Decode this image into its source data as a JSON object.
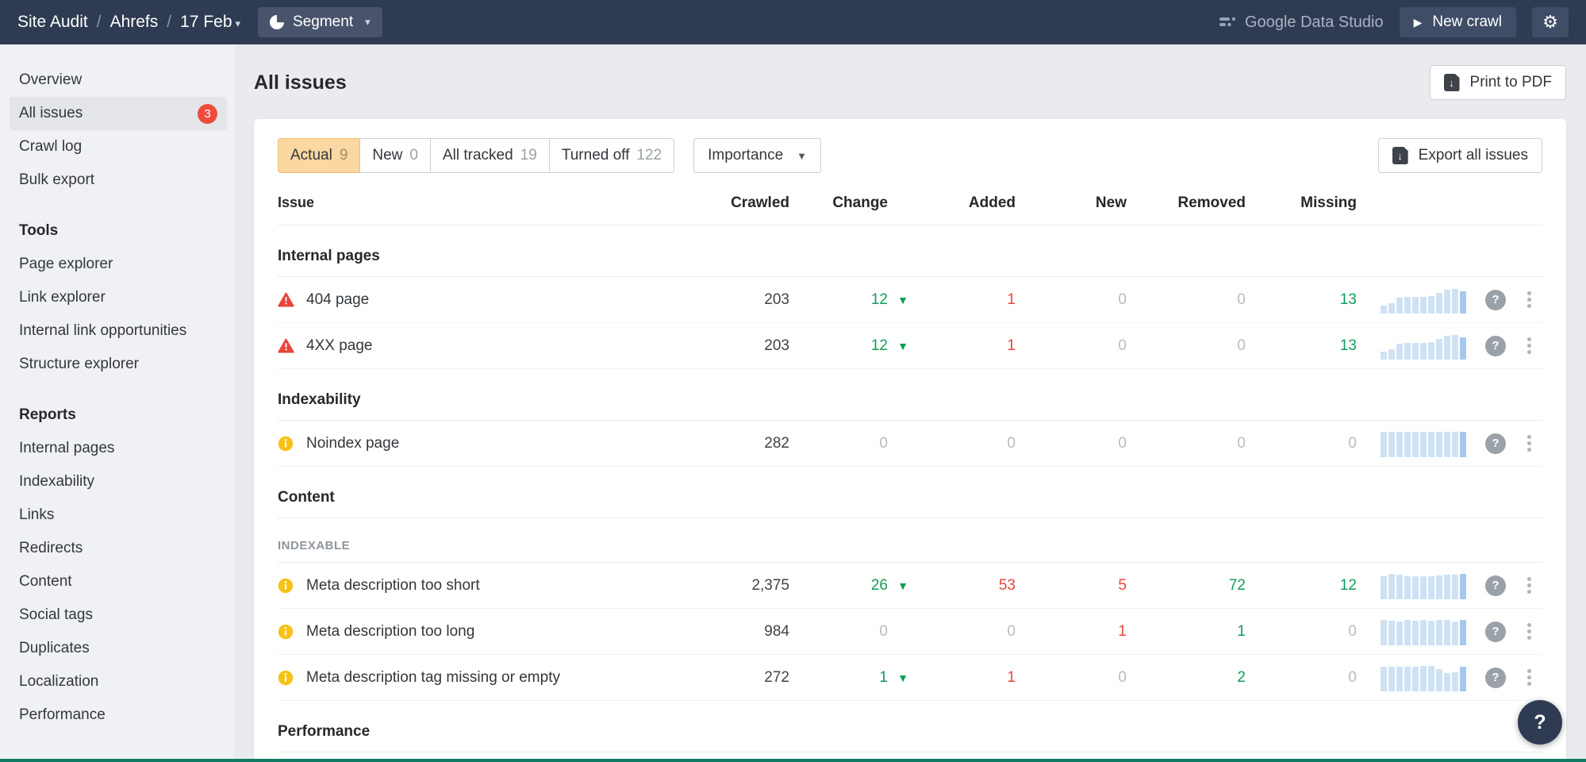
{
  "colors": {
    "topbar_navy": "#2e3b52",
    "red": "#e8453c",
    "green": "#0f9d58",
    "gray_num": "#b7bcc1",
    "dark_num": "#3f4347",
    "spark_bar": "#cfe2f4",
    "spark_bar_last": "#a6c8ec",
    "badge_red": "#ee4c3f",
    "info_yellow": "#f7c116",
    "tab_active_bg": "#fbd7a1"
  },
  "topbar": {
    "breadcrumb": [
      "Site Audit",
      "Ahrefs",
      "17 Feb"
    ],
    "segment_label": "Segment",
    "gds_label": "Google Data Studio",
    "new_crawl_label": "New crawl"
  },
  "sidebar": {
    "groups": [
      {
        "header": null,
        "items": [
          {
            "label": "Overview"
          },
          {
            "label": "All issues",
            "badge": "3",
            "active": true
          },
          {
            "label": "Crawl log"
          },
          {
            "label": "Bulk export"
          }
        ]
      },
      {
        "header": "Tools",
        "items": [
          {
            "label": "Page explorer"
          },
          {
            "label": "Link explorer"
          },
          {
            "label": "Internal link opportunities"
          },
          {
            "label": "Structure explorer"
          }
        ]
      },
      {
        "header": "Reports",
        "items": [
          {
            "label": "Internal pages"
          },
          {
            "label": "Indexability"
          },
          {
            "label": "Links"
          },
          {
            "label": "Redirects"
          },
          {
            "label": "Content"
          },
          {
            "label": "Social tags"
          },
          {
            "label": "Duplicates"
          },
          {
            "label": "Localization"
          },
          {
            "label": "Performance"
          }
        ]
      }
    ]
  },
  "main": {
    "title": "All issues",
    "print_button": "Print to PDF",
    "export_button": "Export all issues",
    "importance_label": "Importance",
    "tabs": [
      {
        "label": "Actual",
        "count": "9",
        "active": true
      },
      {
        "label": "New",
        "count": "0"
      },
      {
        "label": "All tracked",
        "count": "19"
      },
      {
        "label": "Turned off",
        "count": "122"
      }
    ]
  },
  "table": {
    "columns": [
      "Issue",
      "Crawled",
      "Change",
      "Added",
      "New",
      "Removed",
      "Missing"
    ],
    "blocks": [
      {
        "type": "group",
        "label": "Internal pages"
      },
      {
        "type": "row",
        "icon": "alert-triangle-icon",
        "name": "404 page",
        "crawled": "203",
        "change": {
          "v": "12",
          "c": "green",
          "trend": "down"
        },
        "added": {
          "v": "1",
          "c": "red"
        },
        "new": {
          "v": "0",
          "c": "gray"
        },
        "removed": {
          "v": "0",
          "c": "gray"
        },
        "missing": {
          "v": "13",
          "c": "green"
        },
        "spark": {
          "bars": [
            30,
            38,
            60,
            64,
            64,
            64,
            68,
            80,
            92,
            95,
            85
          ],
          "last_dark": true
        }
      },
      {
        "type": "row",
        "icon": "alert-triangle-icon",
        "name": "4XX page",
        "crawled": "203",
        "change": {
          "v": "12",
          "c": "green",
          "trend": "down"
        },
        "added": {
          "v": "1",
          "c": "red"
        },
        "new": {
          "v": "0",
          "c": "gray"
        },
        "removed": {
          "v": "0",
          "c": "gray"
        },
        "missing": {
          "v": "13",
          "c": "green"
        },
        "spark": {
          "bars": [
            30,
            38,
            60,
            64,
            64,
            64,
            68,
            80,
            92,
            95,
            85
          ],
          "last_dark": true
        }
      },
      {
        "type": "group",
        "label": "Indexability"
      },
      {
        "type": "row",
        "icon": "info-circle-icon",
        "name": "Noindex page",
        "crawled": "282",
        "change": {
          "v": "0",
          "c": "gray"
        },
        "added": {
          "v": "0",
          "c": "gray"
        },
        "new": {
          "v": "0",
          "c": "gray"
        },
        "removed": {
          "v": "0",
          "c": "gray"
        },
        "missing": {
          "v": "0",
          "c": "gray"
        },
        "spark": {
          "bars": [
            100,
            100,
            100,
            100,
            100,
            100,
            100,
            100,
            100,
            100,
            100
          ],
          "last_dark": true
        }
      },
      {
        "type": "group",
        "label": "Content"
      },
      {
        "type": "subgroup",
        "label": "INDEXABLE"
      },
      {
        "type": "row",
        "icon": "info-circle-icon",
        "name": "Meta description too short",
        "crawled": "2,375",
        "change": {
          "v": "26",
          "c": "green",
          "trend": "down"
        },
        "added": {
          "v": "53",
          "c": "red"
        },
        "new": {
          "v": "5",
          "c": "red"
        },
        "removed": {
          "v": "72",
          "c": "green"
        },
        "missing": {
          "v": "12",
          "c": "green"
        },
        "spark": {
          "bars": [
            90,
            100,
            96,
            90,
            88,
            88,
            90,
            93,
            95,
            95,
            100
          ],
          "last_dark": true
        }
      },
      {
        "type": "row",
        "icon": "info-circle-icon",
        "name": "Meta description too long",
        "crawled": "984",
        "change": {
          "v": "0",
          "c": "gray"
        },
        "added": {
          "v": "0",
          "c": "gray"
        },
        "new": {
          "v": "1",
          "c": "red"
        },
        "removed": {
          "v": "1",
          "c": "green"
        },
        "missing": {
          "v": "0",
          "c": "gray"
        },
        "spark": {
          "bars": [
            100,
            95,
            92,
            100,
            95,
            100,
            95,
            100,
            100,
            92,
            100
          ],
          "last_dark": true
        }
      },
      {
        "type": "row",
        "icon": "info-circle-icon",
        "name": "Meta description tag missing or empty",
        "crawled": "272",
        "change": {
          "v": "1",
          "c": "green",
          "trend": "down"
        },
        "added": {
          "v": "1",
          "c": "red"
        },
        "new": {
          "v": "0",
          "c": "gray"
        },
        "removed": {
          "v": "2",
          "c": "green"
        },
        "missing": {
          "v": "0",
          "c": "gray"
        },
        "spark": {
          "bars": [
            95,
            95,
            95,
            95,
            95,
            100,
            100,
            85,
            70,
            75,
            95
          ],
          "last_dark": true
        }
      },
      {
        "type": "group",
        "label": "Performance"
      }
    ]
  },
  "help_fab": {
    "label": "?"
  }
}
